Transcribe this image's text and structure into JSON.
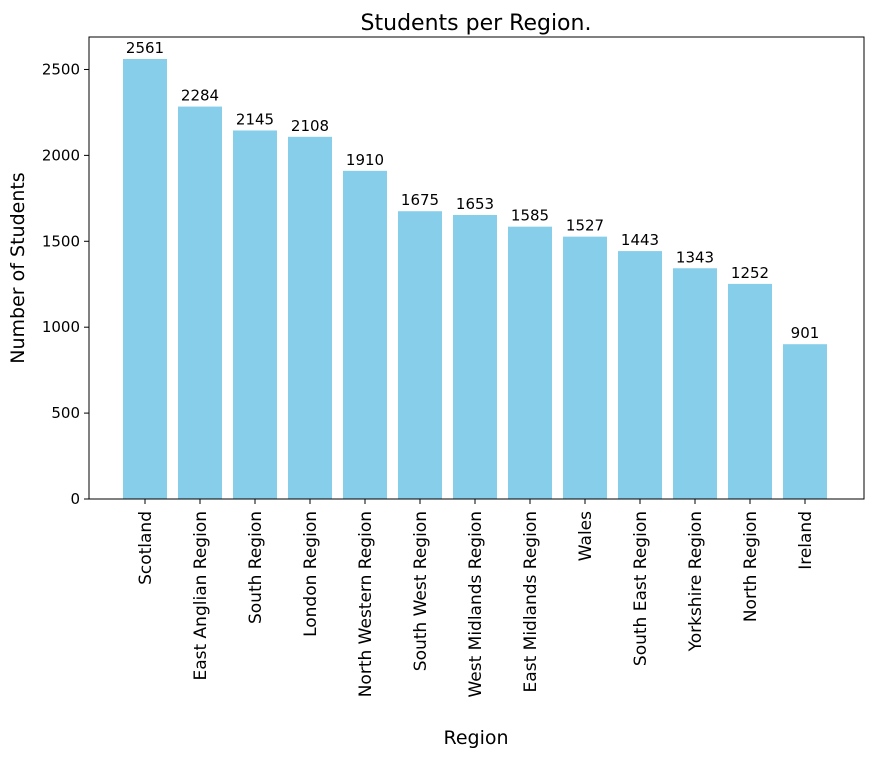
{
  "chart_data": {
    "type": "bar",
    "title": "Students per Region.",
    "xlabel": "Region",
    "ylabel": "Number of Students",
    "categories": [
      "Scotland",
      "East Anglian Region",
      "South Region",
      "London Region",
      "North Western Region",
      "South West Region",
      "West Midlands Region",
      "East Midlands Region",
      "Wales",
      "South East Region",
      "Yorkshire Region",
      "North Region",
      "Ireland"
    ],
    "values": [
      2561,
      2284,
      2145,
      2108,
      1910,
      1675,
      1653,
      1585,
      1527,
      1443,
      1343,
      1252,
      901
    ],
    "ylim": [
      0,
      2689
    ],
    "yticks": [
      0,
      500,
      1000,
      1500,
      2000,
      2500
    ],
    "bar_color": "#87ceeb",
    "data_labels": true,
    "grid": false,
    "legend": false
  }
}
